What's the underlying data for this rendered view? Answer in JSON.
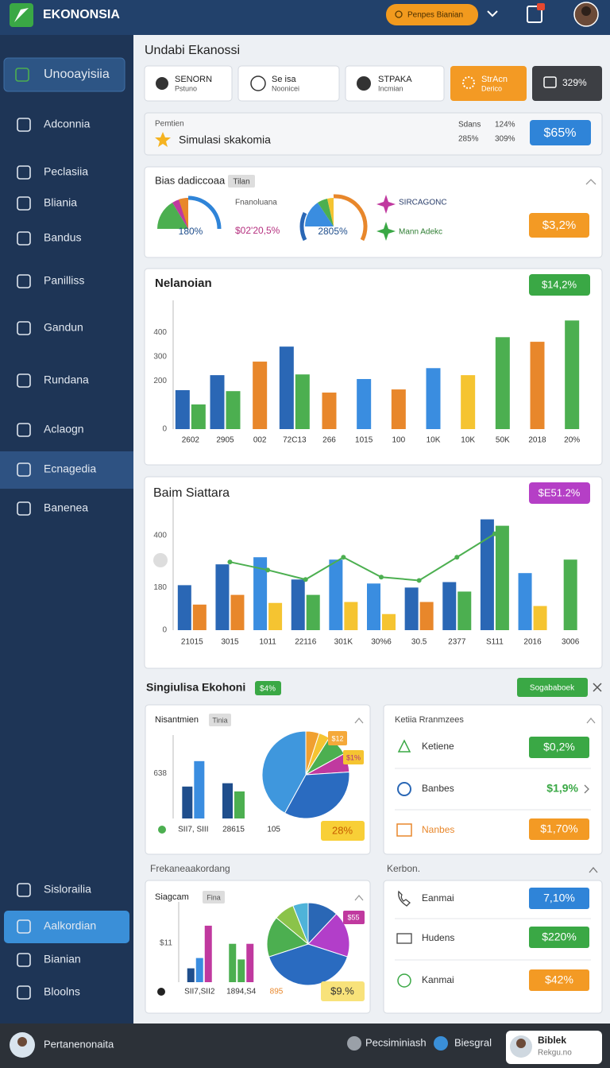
{
  "header": {
    "brand": "EKONONSIA",
    "button": "Penpes Bianian"
  },
  "sidebar": {
    "items": [
      "Unooayisiia",
      "Adconnia",
      "Peclasiia",
      "Bliania",
      "Bandus",
      "Panilliss",
      "Gandun",
      "Rundana",
      "Aclaogn",
      "Ecnagedia",
      "Banenea"
    ],
    "bottom_items": [
      "Sislorailia",
      "Aalkordian",
      "Bianian",
      "Bloolns"
    ]
  },
  "page_title": "Undabi Ekanossi",
  "toolbar": [
    {
      "title": "SENORN",
      "subtitle": "Pstuno"
    },
    {
      "title": "Se isa",
      "subtitle": "Noonicei"
    },
    {
      "title": "STPAKA",
      "subtitle": "Incmian"
    },
    {
      "title": "StrAcn",
      "subtitle": "Derico"
    },
    {
      "title": "329%"
    }
  ],
  "summary": {
    "label": "Pemtien",
    "title": "Simulasi skakomia",
    "stats": [
      "Sdans",
      "124%",
      "285%",
      "309%"
    ],
    "button": "$65%"
  },
  "gauges": {
    "title": "Bias dadiccoaa",
    "tag": "Tilan",
    "gauge1": "180%",
    "caption": "Fnanoluana",
    "value": "$02'20,5%",
    "gauge2": "2805%",
    "legend": [
      "SIRCAGONC",
      "Mann Adekc"
    ],
    "button": "$3,2%"
  },
  "chart_data": [
    {
      "type": "bar",
      "title": "Nelanoian",
      "badge": "$14,2%",
      "categories": [
        "2602",
        "2905",
        "002",
        "72C13",
        "266",
        "1015",
        "100",
        "10K",
        "10K",
        "50K",
        "2018",
        "20%"
      ],
      "series": [
        {
          "colors": [
            "#2a67b5",
            "#2a67b5",
            "#e8872b",
            "#2a67b5",
            "#e8872b",
            "#3a8de0",
            "#e8872b",
            "#3a8de0",
            "#f5c431",
            "#4caf50",
            "#e8872b",
            "#4caf50"
          ],
          "values": [
            161,
            223,
            279,
            341,
            151,
            207,
            164,
            252,
            223,
            380,
            361,
            449
          ]
        },
        {
          "color": "#4caf50",
          "values": [
            102,
            157,
            null,
            226,
            null,
            null,
            null,
            null,
            null,
            null,
            null,
            null
          ]
        }
      ],
      "ylim": [
        0,
        450
      ],
      "yticks": [
        0,
        200,
        300,
        400
      ]
    },
    {
      "type": "bar",
      "title": "Baim Siattara",
      "badge": "$E51.2%",
      "categories": [
        "21015",
        "3015",
        "1011",
        "22116",
        "301K",
        "30%6",
        "30.5",
        "2377",
        "S111",
        "2016",
        "3006"
      ],
      "series": [
        {
          "colors": [
            "#2a67b5",
            "#2a67b5",
            "#3a8de0",
            "#2a67b5",
            "#3a8de0",
            "#3a8de0",
            "#2a67b5",
            "#2a67b5",
            "#2a67b5",
            "#3a8de0",
            "#4caf50"
          ],
          "values": [
            190,
            278,
            308,
            214,
            298,
            197,
            180,
            203,
            468,
            241,
            298
          ]
        },
        {
          "colors": [
            "#e8872b",
            "#e8872b",
            "#f5c431",
            "#4caf50",
            "#f5c431",
            "#f5c431",
            "#e8872b",
            "#4caf50",
            "#4caf50",
            "#f5c431"
          ],
          "values": [
            108,
            149,
            115,
            149,
            119,
            68,
            119,
            163,
            441,
            102,
            null
          ]
        },
        {
          "type": "line",
          "color": "#4caf50",
          "values": [
            null,
            288,
            254,
            214,
            308,
            224,
            210,
            308,
            407,
            null,
            null
          ]
        }
      ],
      "ylim": [
        0,
        480
      ],
      "yticks": [
        0,
        180,
        400
      ]
    },
    {
      "type": "bar",
      "title": "Nisantmien",
      "tag": "Tinia",
      "categories": [
        "SII7, SIII",
        "28615",
        "105"
      ],
      "series": [
        {
          "color": "#1f4e8c",
          "values": [
            452,
            499,
            null
          ]
        },
        {
          "colors": [
            "#3a8de0",
            "#4caf50"
          ],
          "values": [
            812,
            383,
            null
          ]
        }
      ],
      "ylim": [
        0,
        900
      ],
      "yticks": [
        638
      ]
    },
    {
      "type": "pie",
      "values": [
        5,
        4,
        8,
        7,
        34,
        42
      ],
      "colors": [
        "#f0a030",
        "#f5c431",
        "#4caf50",
        "#c0399f",
        "#2a6bc0",
        "#3f97dd"
      ],
      "annotations": [
        "$12",
        "$1%",
        "28%"
      ]
    },
    {
      "type": "bar",
      "title": "Siagcam",
      "tag": "Fina",
      "categories": [
        "SII7,SII2",
        "1894,S4"
      ],
      "series": [
        {
          "colors": [
            "#1f4e8c",
            "#4caf50"
          ],
          "values": [
            3.9,
            10.8
          ]
        },
        {
          "colors": [
            "#3a8de0",
            "#4caf50"
          ],
          "values": [
            6.8,
            6.4
          ]
        },
        {
          "color": "#c0399f",
          "values": [
            15.9,
            10.8
          ]
        }
      ],
      "ylim": [
        0,
        17
      ],
      "yticks": [
        {
          "value": 11,
          "label": "$11"
        }
      ]
    },
    {
      "type": "pie",
      "values": [
        12,
        18,
        40,
        16,
        8,
        6
      ],
      "colors": [
        "#2a67b5",
        "#b23ec9",
        "#2a6bc0",
        "#4caf50",
        "#8bc34a",
        "#4fb3d9"
      ],
      "annotations": [
        "$55",
        "895",
        "$9.%"
      ]
    }
  ],
  "section": {
    "title": "Singiulisa Ekohoni",
    "badge": "$4%",
    "button": "Sogababoek"
  },
  "lists": [
    {
      "title": "Ketiia Rranmzees",
      "rows": [
        {
          "label": "Ketiene",
          "value": "$0,2%"
        },
        {
          "label": "Banbes",
          "value": "$1,9%"
        },
        {
          "label": "Nanbes",
          "value": "$1,70%"
        }
      ]
    },
    {
      "title": "Kerbon.",
      "rows": [
        {
          "label": "Eanmai",
          "value": "7,10%"
        },
        {
          "label": "Hudens",
          "value": "$220%"
        },
        {
          "label": "Kanmai",
          "value": "$42%"
        }
      ]
    }
  ],
  "subheading": "Frekaneaakordang",
  "footer": {
    "user": "Pertanenonaita",
    "options": [
      "Pecsiminiash",
      "Biesgral"
    ],
    "profile": {
      "name": "Biblek",
      "subtitle": "Rekgu.no"
    }
  }
}
